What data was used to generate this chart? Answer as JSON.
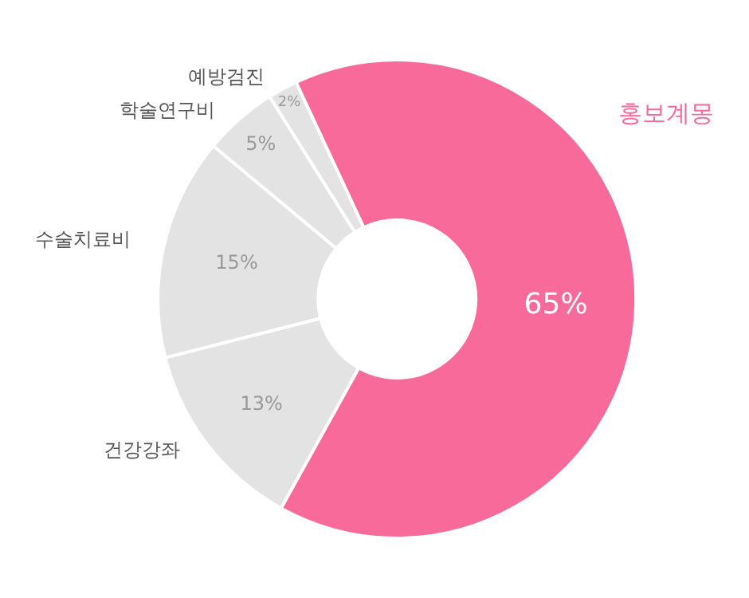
{
  "chart_data": {
    "type": "donut",
    "categories": [
      "홍보계몽",
      "건강강좌",
      "수술치료비",
      "학술연구비",
      "예방검진"
    ],
    "values": [
      65,
      13,
      15,
      5,
      2
    ],
    "colors": [
      "#f76a9a",
      "#e3e3e3",
      "#e3e3e3",
      "#e3e3e3",
      "#e3e3e3"
    ],
    "value_labels": [
      "65%",
      "13%",
      "15%",
      "5%",
      "2%"
    ],
    "legend": false
  }
}
